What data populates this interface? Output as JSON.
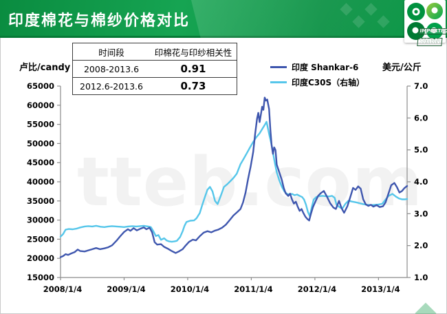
{
  "header": {
    "title": "印度棉花与棉纱价格对比",
    "accent_green": "#0B9444",
    "logo": {
      "line1": "IMPORTED",
      "line2": "YARN"
    }
  },
  "watermark": "tteb.com",
  "table": {
    "headers": [
      "时间段",
      "印棉花与印纱相关性"
    ],
    "rows": [
      {
        "period": "2008-2013.6",
        "value": "0.91"
      },
      {
        "period": "2012.6-2013.6",
        "value": "0.73"
      }
    ]
  },
  "chart_data": {
    "type": "line",
    "title": "印度棉花与棉纱价格对比",
    "grid": false,
    "legend_position": "top-right",
    "x_domain": [
      2008.0,
      2013.45
    ],
    "x_ticks": [
      "2008/1/4",
      "2009/1/4",
      "2010/1/4",
      "2011/1/4",
      "2012/1/4",
      "2013/1/4"
    ],
    "left_axis": {
      "label": "卢比/candy",
      "min": 15000,
      "max": 65000,
      "tick_step": 5000
    },
    "right_axis": {
      "label": "美元/公斤",
      "min": 1.0,
      "max": 7.0,
      "tick_step": 1.0
    },
    "legend": [
      {
        "name": "印度 Shankar-6",
        "color": "#3E56AE",
        "axis": "left"
      },
      {
        "name": "印度C30S（右轴）",
        "color": "#55C6EA",
        "axis": "right"
      }
    ],
    "series": [
      {
        "name": "印度 Shankar-6",
        "axis": "left",
        "color": "#3E56AE",
        "points": [
          [
            2008.0,
            20300
          ],
          [
            2008.04,
            20600
          ],
          [
            2008.08,
            21100
          ],
          [
            2008.12,
            20900
          ],
          [
            2008.17,
            21300
          ],
          [
            2008.22,
            21600
          ],
          [
            2008.27,
            22300
          ],
          [
            2008.31,
            21900
          ],
          [
            2008.38,
            21800
          ],
          [
            2008.44,
            22100
          ],
          [
            2008.5,
            22400
          ],
          [
            2008.56,
            22700
          ],
          [
            2008.62,
            22400
          ],
          [
            2008.69,
            22600
          ],
          [
            2008.75,
            22900
          ],
          [
            2008.81,
            23400
          ],
          [
            2008.88,
            24600
          ],
          [
            2008.94,
            25800
          ],
          [
            2009.0,
            26900
          ],
          [
            2009.06,
            27600
          ],
          [
            2009.1,
            27200
          ],
          [
            2009.15,
            27900
          ],
          [
            2009.2,
            27300
          ],
          [
            2009.25,
            27700
          ],
          [
            2009.31,
            28100
          ],
          [
            2009.35,
            27600
          ],
          [
            2009.4,
            28000
          ],
          [
            2009.44,
            26800
          ],
          [
            2009.48,
            24200
          ],
          [
            2009.52,
            23600
          ],
          [
            2009.58,
            23700
          ],
          [
            2009.63,
            23000
          ],
          [
            2009.69,
            22500
          ],
          [
            2009.75,
            21900
          ],
          [
            2009.81,
            21400
          ],
          [
            2009.86,
            21800
          ],
          [
            2009.92,
            22400
          ],
          [
            2009.97,
            23400
          ],
          [
            2010.02,
            24300
          ],
          [
            2010.08,
            24900
          ],
          [
            2010.13,
            24700
          ],
          [
            2010.19,
            25800
          ],
          [
            2010.25,
            26700
          ],
          [
            2010.31,
            27100
          ],
          [
            2010.37,
            26800
          ],
          [
            2010.42,
            27200
          ],
          [
            2010.48,
            27500
          ],
          [
            2010.54,
            28000
          ],
          [
            2010.6,
            28800
          ],
          [
            2010.66,
            30000
          ],
          [
            2010.72,
            31200
          ],
          [
            2010.78,
            32100
          ],
          [
            2010.83,
            32900
          ],
          [
            2010.87,
            34600
          ],
          [
            2010.91,
            37200
          ],
          [
            2010.95,
            40800
          ],
          [
            2010.99,
            44000
          ],
          [
            2011.03,
            47800
          ],
          [
            2011.06,
            52500
          ],
          [
            2011.09,
            56500
          ],
          [
            2011.11,
            58000
          ],
          [
            2011.13,
            55600
          ],
          [
            2011.15,
            57500
          ],
          [
            2011.17,
            59600
          ],
          [
            2011.19,
            58800
          ],
          [
            2011.21,
            62000
          ],
          [
            2011.23,
            61200
          ],
          [
            2011.25,
            61500
          ],
          [
            2011.28,
            59000
          ],
          [
            2011.3,
            53500
          ],
          [
            2011.32,
            49500
          ],
          [
            2011.34,
            47300
          ],
          [
            2011.36,
            49000
          ],
          [
            2011.38,
            48300
          ],
          [
            2011.4,
            44500
          ],
          [
            2011.44,
            42500
          ],
          [
            2011.48,
            40500
          ],
          [
            2011.51,
            38400
          ],
          [
            2011.54,
            37000
          ],
          [
            2011.58,
            36300
          ],
          [
            2011.61,
            36900
          ],
          [
            2011.64,
            35400
          ],
          [
            2011.67,
            34300
          ],
          [
            2011.7,
            34800
          ],
          [
            2011.73,
            33500
          ],
          [
            2011.76,
            32400
          ],
          [
            2011.79,
            32900
          ],
          [
            2011.82,
            31800
          ],
          [
            2011.85,
            30900
          ],
          [
            2011.88,
            30300
          ],
          [
            2011.91,
            29900
          ],
          [
            2011.94,
            31800
          ],
          [
            2011.97,
            33400
          ],
          [
            2012.01,
            34900
          ],
          [
            2012.05,
            36300
          ],
          [
            2012.09,
            37000
          ],
          [
            2012.14,
            37600
          ],
          [
            2012.19,
            36100
          ],
          [
            2012.24,
            34400
          ],
          [
            2012.29,
            33300
          ],
          [
            2012.33,
            32900
          ],
          [
            2012.38,
            35000
          ],
          [
            2012.42,
            33100
          ],
          [
            2012.46,
            31900
          ],
          [
            2012.51,
            33600
          ],
          [
            2012.56,
            36200
          ],
          [
            2012.6,
            38400
          ],
          [
            2012.64,
            37900
          ],
          [
            2012.68,
            38800
          ],
          [
            2012.72,
            38200
          ],
          [
            2012.76,
            35400
          ],
          [
            2012.8,
            34100
          ],
          [
            2012.84,
            33700
          ],
          [
            2012.88,
            34000
          ],
          [
            2012.92,
            33500
          ],
          [
            2012.97,
            33900
          ],
          [
            2013.02,
            33400
          ],
          [
            2013.07,
            33600
          ],
          [
            2013.11,
            34600
          ],
          [
            2013.15,
            36600
          ],
          [
            2013.2,
            39100
          ],
          [
            2013.25,
            39700
          ],
          [
            2013.29,
            38600
          ],
          [
            2013.33,
            37200
          ],
          [
            2013.37,
            37600
          ],
          [
            2013.41,
            38400
          ],
          [
            2013.45,
            38900
          ]
        ]
      },
      {
        "name": "印度C30S（右轴）",
        "axis": "right",
        "color": "#55C6EA",
        "points": [
          [
            2008.0,
            2.28
          ],
          [
            2008.04,
            2.36
          ],
          [
            2008.08,
            2.5
          ],
          [
            2008.13,
            2.52
          ],
          [
            2008.19,
            2.51
          ],
          [
            2008.25,
            2.53
          ],
          [
            2008.31,
            2.57
          ],
          [
            2008.38,
            2.6
          ],
          [
            2008.44,
            2.61
          ],
          [
            2008.5,
            2.6
          ],
          [
            2008.56,
            2.62
          ],
          [
            2008.63,
            2.59
          ],
          [
            2008.69,
            2.58
          ],
          [
            2008.75,
            2.6
          ],
          [
            2008.81,
            2.61
          ],
          [
            2008.88,
            2.6
          ],
          [
            2008.94,
            2.59
          ],
          [
            2009.0,
            2.58
          ],
          [
            2009.06,
            2.6
          ],
          [
            2009.13,
            2.61
          ],
          [
            2009.19,
            2.6
          ],
          [
            2009.25,
            2.61
          ],
          [
            2009.31,
            2.62
          ],
          [
            2009.38,
            2.6
          ],
          [
            2009.42,
            2.58
          ],
          [
            2009.46,
            2.45
          ],
          [
            2009.5,
            2.3
          ],
          [
            2009.54,
            2.33
          ],
          [
            2009.58,
            2.18
          ],
          [
            2009.63,
            2.23
          ],
          [
            2009.67,
            2.16
          ],
          [
            2009.71,
            2.13
          ],
          [
            2009.75,
            2.12
          ],
          [
            2009.79,
            2.13
          ],
          [
            2009.83,
            2.15
          ],
          [
            2009.88,
            2.27
          ],
          [
            2009.92,
            2.45
          ],
          [
            2009.95,
            2.62
          ],
          [
            2009.98,
            2.74
          ],
          [
            2010.04,
            2.78
          ],
          [
            2010.1,
            2.79
          ],
          [
            2010.14,
            2.86
          ],
          [
            2010.19,
            3.02
          ],
          [
            2010.23,
            3.28
          ],
          [
            2010.27,
            3.52
          ],
          [
            2010.31,
            3.75
          ],
          [
            2010.35,
            3.84
          ],
          [
            2010.39,
            3.7
          ],
          [
            2010.43,
            3.4
          ],
          [
            2010.47,
            3.3
          ],
          [
            2010.52,
            3.56
          ],
          [
            2010.57,
            3.84
          ],
          [
            2010.62,
            3.92
          ],
          [
            2010.67,
            4.02
          ],
          [
            2010.72,
            4.12
          ],
          [
            2010.77,
            4.25
          ],
          [
            2010.83,
            4.55
          ],
          [
            2010.88,
            4.72
          ],
          [
            2010.93,
            4.9
          ],
          [
            2010.98,
            5.08
          ],
          [
            2011.03,
            5.25
          ],
          [
            2011.08,
            5.4
          ],
          [
            2011.13,
            5.52
          ],
          [
            2011.17,
            5.65
          ],
          [
            2011.21,
            5.78
          ],
          [
            2011.24,
            5.88
          ],
          [
            2011.28,
            5.5
          ],
          [
            2011.32,
            5.15
          ],
          [
            2011.36,
            4.7
          ],
          [
            2011.4,
            4.3
          ],
          [
            2011.44,
            4.05
          ],
          [
            2011.48,
            3.85
          ],
          [
            2011.52,
            3.7
          ],
          [
            2011.56,
            3.62
          ],
          [
            2011.6,
            3.6
          ],
          [
            2011.64,
            3.62
          ],
          [
            2011.68,
            3.58
          ],
          [
            2011.72,
            3.6
          ],
          [
            2011.76,
            3.56
          ],
          [
            2011.8,
            3.52
          ],
          [
            2011.83,
            3.44
          ],
          [
            2011.86,
            3.28
          ],
          [
            2011.89,
            3.06
          ],
          [
            2011.92,
            2.92
          ],
          [
            2011.95,
            3.2
          ],
          [
            2011.98,
            3.44
          ],
          [
            2012.02,
            3.52
          ],
          [
            2012.07,
            3.55
          ],
          [
            2012.12,
            3.56
          ],
          [
            2012.17,
            3.55
          ],
          [
            2012.22,
            3.54
          ],
          [
            2012.27,
            3.56
          ],
          [
            2012.31,
            3.5
          ],
          [
            2012.34,
            3.28
          ],
          [
            2012.39,
            3.2
          ],
          [
            2012.43,
            3.16
          ],
          [
            2012.48,
            3.31
          ],
          [
            2012.53,
            3.41
          ],
          [
            2012.58,
            3.38
          ],
          [
            2012.64,
            3.36
          ],
          [
            2012.7,
            3.33
          ],
          [
            2012.76,
            3.3
          ],
          [
            2012.82,
            3.28
          ],
          [
            2012.88,
            3.27
          ],
          [
            2012.94,
            3.28
          ],
          [
            2013.0,
            3.29
          ],
          [
            2013.06,
            3.31
          ],
          [
            2013.11,
            3.44
          ],
          [
            2013.16,
            3.56
          ],
          [
            2013.22,
            3.62
          ],
          [
            2013.27,
            3.54
          ],
          [
            2013.32,
            3.48
          ],
          [
            2013.37,
            3.45
          ],
          [
            2013.42,
            3.45
          ],
          [
            2013.45,
            3.46
          ]
        ]
      }
    ]
  }
}
